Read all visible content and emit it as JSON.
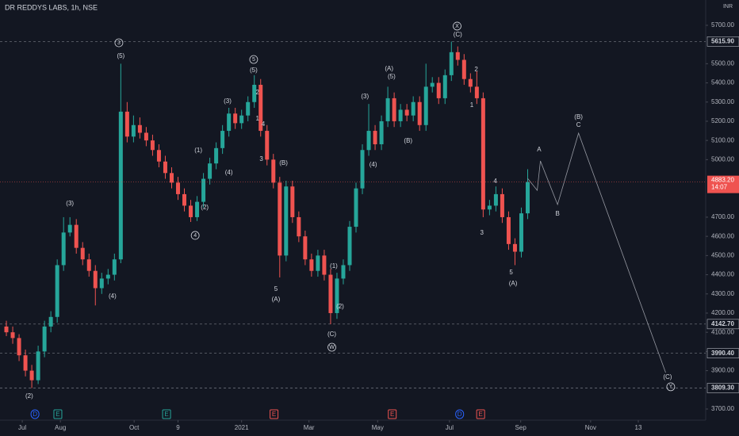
{
  "chart_data": {
    "type": "candlestick",
    "title": "DR REDDYS LABS, 1h, NSE",
    "currency": "INR",
    "open": [
      4130,
      4100,
      4070,
      3980,
      3900,
      3850,
      4000,
      4130,
      4180,
      4450,
      4620,
      4660,
      4540,
      4480,
      4420,
      4330,
      4380,
      4400,
      4480,
      5250,
      5120,
      5180,
      5140,
      5100,
      5050,
      4990,
      4930,
      4880,
      4820,
      4760,
      4700,
      4780,
      4900,
      4980,
      5060,
      5150,
      5240,
      5190,
      5230,
      5300,
      5390,
      5150,
      5000,
      4880,
      4500,
      4860,
      4700,
      4600,
      4480,
      4420,
      4500,
      4400,
      4200,
      4380,
      4450,
      4650,
      4850,
      5050,
      5150,
      5080,
      5200,
      5320,
      5200,
      5260,
      5230,
      5300,
      5180,
      5380,
      5400,
      5320,
      5440,
      5560,
      5520,
      5420,
      5380,
      5320,
      4740,
      4760,
      4820,
      4700,
      4560,
      4520,
      4720
    ],
    "high": [
      4160,
      4130,
      4090,
      4010,
      3930,
      4030,
      4160,
      4210,
      4480,
      4700,
      4700,
      4690,
      4570,
      4510,
      4450,
      4410,
      4430,
      4510,
      5500,
      5300,
      5230,
      5220,
      5170,
      5130,
      5080,
      5020,
      4960,
      4910,
      4850,
      4790,
      4810,
      4930,
      5010,
      5090,
      5180,
      5270,
      5270,
      5260,
      5330,
      5440,
      5420,
      5180,
      5030,
      4910,
      4890,
      4890,
      4730,
      4630,
      4510,
      4530,
      4530,
      4430,
      4410,
      4480,
      4680,
      4880,
      5080,
      5290,
      5180,
      5230,
      5380,
      5350,
      5290,
      5290,
      5330,
      5330,
      5500,
      5430,
      5430,
      5470,
      5615,
      5590,
      5550,
      5450,
      5460,
      5350,
      4790,
      4860,
      4850,
      4730,
      4590,
      4750,
      4950
    ],
    "low": [
      4080,
      4040,
      3950,
      3870,
      3809,
      3830,
      3970,
      4100,
      4150,
      4420,
      4600,
      4510,
      4450,
      4390,
      4240,
      4300,
      4350,
      4370,
      4460,
      5090,
      5090,
      5110,
      5070,
      5020,
      4960,
      4900,
      4850,
      4790,
      4730,
      4675,
      4680,
      4750,
      4870,
      4950,
      5030,
      5120,
      5160,
      5160,
      5200,
      5270,
      5120,
      4970,
      4850,
      4386,
      4470,
      4670,
      4570,
      4450,
      4390,
      4390,
      4370,
      4142,
      4170,
      4350,
      4420,
      4620,
      4820,
      5020,
      5050,
      5050,
      5170,
      5170,
      5170,
      5200,
      5200,
      5150,
      5150,
      5350,
      5290,
      5290,
      5410,
      5490,
      5390,
      5350,
      5290,
      4700,
      4710,
      4730,
      4670,
      4530,
      4450,
      4490,
      4690
    ],
    "close": [
      4100,
      4070,
      3980,
      3900,
      3850,
      4000,
      4130,
      4180,
      4450,
      4620,
      4660,
      4540,
      4480,
      4420,
      4330,
      4380,
      4400,
      4480,
      5250,
      5120,
      5180,
      5140,
      5100,
      5050,
      4990,
      4930,
      4880,
      4820,
      4760,
      4700,
      4780,
      4900,
      4980,
      5060,
      5150,
      5240,
      5190,
      5230,
      5300,
      5390,
      5150,
      5000,
      4880,
      4500,
      4860,
      4700,
      4600,
      4480,
      4420,
      4500,
      4400,
      4200,
      4380,
      4450,
      4650,
      4850,
      5050,
      5150,
      5080,
      5200,
      5320,
      5200,
      5260,
      5230,
      5300,
      5180,
      5380,
      5400,
      5320,
      5440,
      5560,
      5520,
      5420,
      5380,
      5320,
      4740,
      4760,
      4820,
      4700,
      4560,
      4520,
      4720,
      4883.2
    ],
    "up_color": "#26a69a",
    "down_color": "#ef5350",
    "xlim": [
      -1,
      110
    ],
    "ylim": [
      3642,
      5832
    ],
    "xticks": [
      {
        "value": 2.5,
        "label": "Jul"
      },
      {
        "value": 8.5,
        "label": "Aug"
      },
      {
        "value": 20.1,
        "label": "Oct"
      },
      {
        "value": 27,
        "label": "9"
      },
      {
        "value": 37,
        "label": "2021"
      },
      {
        "value": 47.6,
        "label": "Mar"
      },
      {
        "value": 58.4,
        "label": "May"
      },
      {
        "value": 69.7,
        "label": "Jul"
      },
      {
        "value": 80.9,
        "label": "Sep"
      },
      {
        "value": 91.9,
        "label": "Nov"
      },
      {
        "value": 99.4,
        "label": "13"
      }
    ],
    "yticks": [
      {
        "value": 3700,
        "label": "3700.00"
      },
      {
        "value": 3900,
        "label": "3900.00"
      },
      {
        "value": 4000,
        "label": "4000.00"
      },
      {
        "value": 4100,
        "label": "4100.00"
      },
      {
        "value": 4200,
        "label": "4200.00"
      },
      {
        "value": 4300,
        "label": "4300.00"
      },
      {
        "value": 4400,
        "label": "4400.00"
      },
      {
        "value": 4500,
        "label": "4500.00"
      },
      {
        "value": 4600,
        "label": "4600.00"
      },
      {
        "value": 4700,
        "label": "4700.00"
      },
      {
        "value": 5000,
        "label": "5000.00"
      },
      {
        "value": 5100,
        "label": "5100.00"
      },
      {
        "value": 5200,
        "label": "5200.00"
      },
      {
        "value": 5300,
        "label": "5300.00"
      },
      {
        "value": 5400,
        "label": "5400.00"
      },
      {
        "value": 5500,
        "label": "5500.00"
      },
      {
        "value": 5700,
        "label": "5700.00"
      }
    ],
    "levels": [
      {
        "value": 5615.9,
        "label": "5615.90"
      },
      {
        "value": 4142.7,
        "label": "4142.70"
      },
      {
        "value": 3990.4,
        "label": "3990.40"
      },
      {
        "value": 3809.3,
        "label": "3809.30"
      }
    ],
    "last": {
      "value": 4883.2,
      "label": "4883.20",
      "time": "14:07"
    },
    "projection": {
      "x": [
        82,
        83.5,
        84,
        86.7,
        90,
        103.7
      ],
      "values": [
        4902,
        4840,
        4993,
        4766,
        5138,
        3890
      ]
    },
    "annotations": [
      {
        "text": "3",
        "circled": true,
        "x": 17.7,
        "y": 5609
      },
      {
        "text": "(5)",
        "x": 18,
        "y": 5539
      },
      {
        "text": "(3)",
        "x": 10,
        "y": 4770
      },
      {
        "text": "(4)",
        "x": 16.7,
        "y": 4287
      },
      {
        "text": "(2)",
        "x": 3.6,
        "y": 3766
      },
      {
        "text": "(1)",
        "x": 30.2,
        "y": 5047
      },
      {
        "text": "(2)",
        "x": 31.2,
        "y": 4749
      },
      {
        "text": "4",
        "circled": true,
        "x": 29.7,
        "y": 4605
      },
      {
        "text": "(4)",
        "x": 35,
        "y": 4931
      },
      {
        "text": "(3)",
        "x": 34.8,
        "y": 5303
      },
      {
        "text": "5",
        "circled": true,
        "x": 38.9,
        "y": 5522
      },
      {
        "text": "(5)",
        "x": 38.9,
        "y": 5464
      },
      {
        "text": "2",
        "x": 39.5,
        "y": 5349
      },
      {
        "text": "1",
        "x": 39.5,
        "y": 5212
      },
      {
        "text": "4",
        "x": 40.4,
        "y": 5183
      },
      {
        "text": "3",
        "x": 40.1,
        "y": 5001
      },
      {
        "text": "(B)",
        "x": 43.6,
        "y": 4981
      },
      {
        "text": "5",
        "x": 42.4,
        "y": 4324
      },
      {
        "text": "(A)",
        "x": 42.4,
        "y": 4270
      },
      {
        "text": "(1)",
        "x": 51.5,
        "y": 4444
      },
      {
        "text": "(2)",
        "x": 52.5,
        "y": 4233
      },
      {
        "text": "(C)",
        "x": 51.2,
        "y": 4088
      },
      {
        "text": "W",
        "circled": true,
        "x": 51.2,
        "y": 4022
      },
      {
        "text": "(3)",
        "x": 56.4,
        "y": 5328
      },
      {
        "text": "(4)",
        "x": 57.7,
        "y": 4973
      },
      {
        "text": "(A)",
        "x": 60.2,
        "y": 5473
      },
      {
        "text": "(5)",
        "x": 60.6,
        "y": 5431
      },
      {
        "text": "(B)",
        "x": 63.2,
        "y": 5097
      },
      {
        "text": "X",
        "circled": true,
        "x": 70.9,
        "y": 5696
      },
      {
        "text": "(C)",
        "x": 71,
        "y": 5650
      },
      {
        "text": "2",
        "x": 73.9,
        "y": 5468
      },
      {
        "text": "1",
        "x": 73.2,
        "y": 5282
      },
      {
        "text": "4",
        "x": 76.9,
        "y": 4886
      },
      {
        "text": "3",
        "x": 74.8,
        "y": 4617
      },
      {
        "text": "5",
        "x": 79.4,
        "y": 4411
      },
      {
        "text": "(A)",
        "x": 79.7,
        "y": 4353
      },
      {
        "text": "A",
        "x": 83.8,
        "y": 5051
      },
      {
        "text": "B",
        "x": 86.7,
        "y": 4716
      },
      {
        "text": "(B)",
        "x": 90,
        "y": 5220
      },
      {
        "text": "C",
        "x": 90,
        "y": 5179
      },
      {
        "text": "(C)",
        "x": 104,
        "y": 3865
      },
      {
        "text": "Y",
        "circled": true,
        "x": 104.5,
        "y": 3816
      }
    ],
    "events": [
      {
        "label": "D",
        "x": 4.5,
        "color": "#2962ff"
      },
      {
        "label": "E",
        "x": 8.1,
        "color": "#26a69a"
      },
      {
        "label": "E",
        "x": 25.2,
        "color": "#26a69a"
      },
      {
        "label": "E",
        "x": 42.1,
        "color": "#ef5350"
      },
      {
        "label": "E",
        "x": 60.7,
        "color": "#ef5350"
      },
      {
        "label": "D",
        "x": 71.3,
        "color": "#2962ff"
      },
      {
        "label": "E",
        "x": 74.6,
        "color": "#ef5350"
      }
    ]
  }
}
